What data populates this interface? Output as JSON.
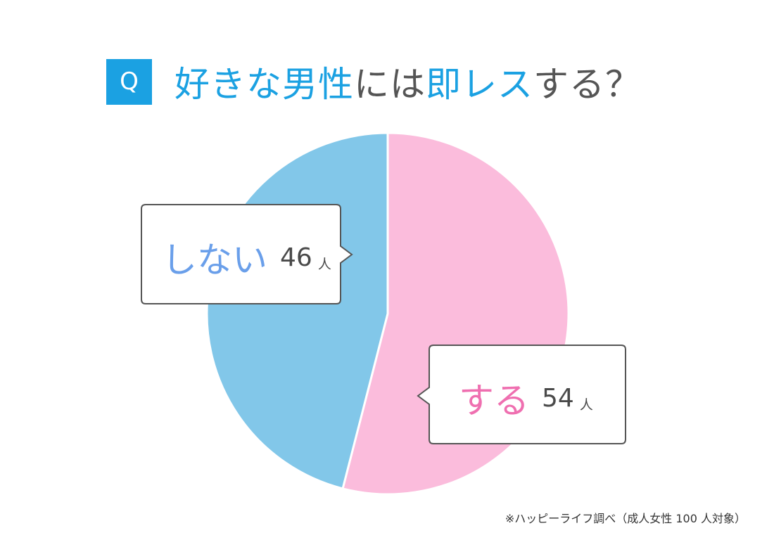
{
  "title": {
    "badge": "Q",
    "highlight_1": "好きな男性",
    "plain_1": "には",
    "highlight_2": "即レス",
    "plain_2": "する？"
  },
  "chart_data": {
    "type": "pie",
    "title": "好きな男性には即レスする？",
    "unit": "人",
    "slices": [
      {
        "label": "する",
        "value": 54,
        "unit": "人",
        "color": "#fbbcdc",
        "label_color": "#ef6fb0"
      },
      {
        "label": "しない",
        "value": 46,
        "unit": "人",
        "color": "#82c7e9",
        "label_color": "#6a9fea"
      }
    ],
    "start_angle": "12 o'clock",
    "direction": "clockwise"
  },
  "source_note": "※ハッピーライフ調べ（成人女性 100 人対象）",
  "colors": {
    "accent": "#1ba1e2",
    "text": "#4a4a4a",
    "callout_border": "#555555"
  }
}
